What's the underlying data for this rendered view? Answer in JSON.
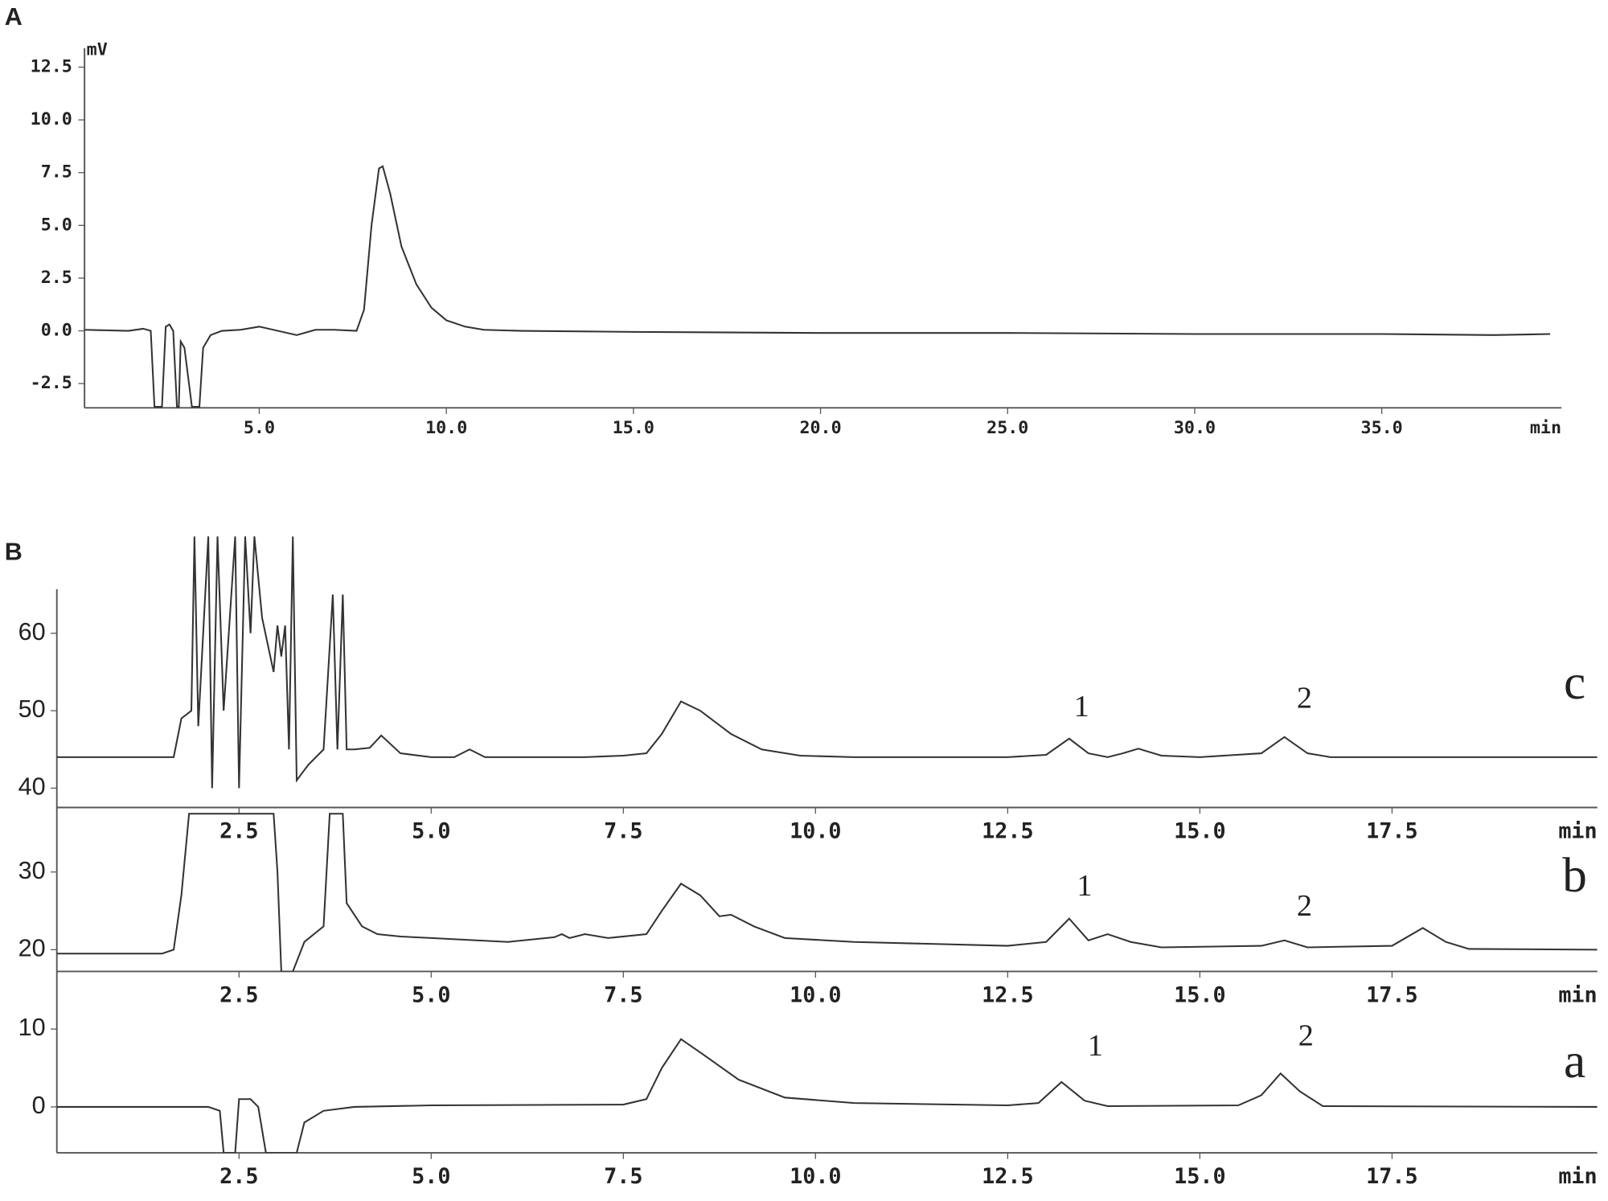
{
  "chart_data": [
    {
      "type": "line",
      "title": "A",
      "xlabel": "min",
      "ylabel": "mV",
      "xlim": [
        0.33,
        39.8
      ],
      "ylim": [
        -3.65,
        13.4
      ],
      "xticks": [
        {
          "value": 5,
          "label": "5.0"
        },
        {
          "value": 10,
          "label": "10.0"
        },
        {
          "value": 15,
          "label": "15.0"
        },
        {
          "value": 20,
          "label": "20.0"
        },
        {
          "value": 25,
          "label": "25.0"
        },
        {
          "value": 30,
          "label": "30.0"
        },
        {
          "value": 35,
          "label": "35.0"
        }
      ],
      "yticks": [
        12.5,
        {
          "value": 10,
          "label": "10.0"
        },
        7.5,
        {
          "value": 5,
          "label": "5.0"
        },
        2.5,
        {
          "value": 0,
          "label": "0.0"
        },
        -2.5
      ],
      "series": [
        {
          "color": "#333333",
          "x": [
            0.33,
            1.5,
            1.9,
            2.1,
            2.2,
            2.4,
            2.5,
            2.6,
            2.7,
            2.75,
            2.8,
            2.85,
            2.9,
            3.0,
            3.2,
            3.4,
            3.5,
            3.7,
            4.0,
            4.5,
            5.0,
            5.5,
            6.0,
            6.5,
            7.0,
            7.6,
            7.8,
            8.0,
            8.2,
            8.3,
            8.5,
            8.8,
            9.2,
            9.6,
            10.0,
            10.5,
            11.0,
            12.0,
            15.0,
            20.0,
            25.0,
            30.0,
            35.0,
            38.0,
            39.5
          ],
          "values": [
            0.05,
            0.0,
            0.1,
            0.0,
            -3.6,
            -3.6,
            0.2,
            0.3,
            0.0,
            -1.8,
            -3.6,
            -3.6,
            -0.5,
            -0.8,
            -3.6,
            -3.6,
            -0.8,
            -0.2,
            0.0,
            0.05,
            0.2,
            0.0,
            -0.2,
            0.05,
            0.05,
            0.0,
            1.0,
            5.0,
            7.7,
            7.8,
            6.5,
            4.0,
            2.2,
            1.1,
            0.5,
            0.2,
            0.05,
            0.0,
            -0.05,
            -0.1,
            -0.1,
            -0.15,
            -0.15,
            -0.2,
            -0.15
          ]
        }
      ]
    },
    {
      "type": "line",
      "title": "B",
      "xlabel": "min",
      "xlim": [
        0.13,
        20.17
      ],
      "ylim": [
        37.5,
        72.7
      ],
      "xticks": [
        2.5,
        {
          "value": 5,
          "label": "5.0"
        },
        7.5,
        {
          "value": 10,
          "label": "10.0"
        },
        12.5,
        {
          "value": 15,
          "label": "15.0"
        },
        17.5
      ],
      "yticks": [
        60,
        50,
        40
      ],
      "series": [
        {
          "name": "c",
          "color": "#333333",
          "x": [
            0.13,
            1.65,
            1.75,
            1.88,
            1.92,
            1.97,
            2.1,
            2.15,
            2.22,
            2.3,
            2.45,
            2.5,
            2.58,
            2.65,
            2.7,
            2.8,
            2.95,
            3.0,
            3.05,
            3.1,
            3.15,
            3.2,
            3.25,
            3.4,
            3.6,
            3.72,
            3.78,
            3.85,
            3.9,
            4.0,
            4.2,
            4.35,
            4.6,
            5.0,
            5.3,
            5.5,
            5.7,
            6.0,
            7.0,
            7.5,
            7.8,
            8.0,
            8.25,
            8.5,
            8.9,
            9.3,
            9.8,
            10.5,
            12.5,
            13.0,
            13.3,
            13.55,
            13.8,
            14.0,
            14.2,
            14.5,
            15.0,
            15.8,
            16.1,
            16.4,
            16.7,
            20.17
          ],
          "values": [
            44,
            44,
            49,
            50,
            72.5,
            48,
            72.5,
            40,
            72.5,
            50,
            72.5,
            40,
            72.5,
            60,
            72.5,
            62,
            55,
            61,
            57,
            61,
            45,
            72.5,
            41,
            43,
            45,
            65,
            45,
            65,
            45,
            45,
            45.2,
            46.8,
            44.5,
            44,
            44,
            45,
            44,
            44,
            44,
            44.2,
            44.5,
            47,
            51.2,
            50,
            47,
            45,
            44.2,
            44,
            44,
            44.3,
            46.4,
            44.5,
            44,
            44.5,
            45.1,
            44.2,
            44,
            44.5,
            46.6,
            44.5,
            44,
            44
          ]
        }
      ],
      "annotations": [
        {
          "text": "1",
          "x": 13.46,
          "y": 50.2
        },
        {
          "text": "2",
          "x": 16.36,
          "y": 51.3
        }
      ]
    },
    {
      "type": "line",
      "xlabel": "min",
      "xlim": [
        0.13,
        20.17
      ],
      "ylim": [
        17.2,
        38.3
      ],
      "xticks": [
        2.5,
        {
          "value": 5,
          "label": "5.0"
        },
        7.5,
        {
          "value": 10,
          "label": "10.0"
        },
        12.5,
        {
          "value": 15,
          "label": "15.0"
        },
        17.5
      ],
      "yticks": [
        30,
        20
      ],
      "series": [
        {
          "name": "b",
          "color": "#333333",
          "x": [
            0.13,
            1.5,
            1.65,
            1.75,
            1.85,
            2.95,
            3.0,
            3.05,
            3.2,
            3.35,
            3.6,
            3.68,
            3.85,
            3.9,
            4.1,
            4.3,
            4.6,
            5.0,
            6.0,
            6.6,
            6.7,
            6.8,
            7.0,
            7.3,
            7.8,
            8.0,
            8.25,
            8.5,
            8.75,
            8.9,
            9.2,
            9.6,
            10.5,
            12.5,
            13.0,
            13.3,
            13.55,
            13.8,
            14.1,
            14.5,
            15.8,
            16.1,
            16.4,
            17.5,
            17.9,
            18.2,
            18.5,
            20.17
          ],
          "values": [
            19.5,
            19.5,
            20,
            27,
            37.5,
            37.5,
            30,
            17.2,
            17.2,
            21,
            23,
            37.5,
            37.5,
            26,
            23,
            22,
            21.7,
            21.5,
            21,
            21.6,
            22,
            21.5,
            22,
            21.5,
            22,
            25,
            28.5,
            27,
            24.3,
            24.5,
            23,
            21.5,
            21,
            20.5,
            21,
            24,
            21.2,
            22,
            21,
            20.3,
            20.5,
            21.2,
            20.3,
            20.5,
            22.8,
            21,
            20.1,
            20
          ]
        }
      ],
      "annotations": [
        {
          "text": "1",
          "x": 13.5,
          "y": 27.9
        },
        {
          "text": "2",
          "x": 16.36,
          "y": 25.3
        }
      ]
    },
    {
      "type": "line",
      "xlabel": "min",
      "xlim": [
        0.13,
        20.17
      ],
      "ylim": [
        -5.9,
        17.4
      ],
      "xticks": [
        2.5,
        {
          "value": 5,
          "label": "5.0"
        },
        7.5,
        {
          "value": 10,
          "label": "10.0"
        },
        12.5,
        {
          "value": 15,
          "label": "15.0"
        },
        17.5
      ],
      "yticks": [
        10,
        0
      ],
      "series": [
        {
          "name": "a",
          "color": "#333333",
          "x": [
            0.13,
            2.1,
            2.25,
            2.3,
            2.45,
            2.5,
            2.65,
            2.75,
            2.85,
            3.25,
            3.35,
            3.6,
            4.0,
            5.0,
            7.5,
            7.8,
            8.0,
            8.25,
            8.5,
            9.0,
            9.6,
            10.5,
            12.5,
            12.9,
            13.2,
            13.5,
            13.8,
            15.5,
            15.8,
            16.05,
            16.3,
            16.6,
            20.17
          ],
          "values": [
            0,
            0,
            -0.5,
            -5.9,
            -5.9,
            1,
            1,
            0,
            -5.9,
            -5.9,
            -2,
            -0.5,
            0,
            0.2,
            0.3,
            1,
            5,
            8.7,
            7,
            3.5,
            1.2,
            0.5,
            0.2,
            0.5,
            3.2,
            0.8,
            0.1,
            0.2,
            1.5,
            4.3,
            2,
            0.1,
            0
          ]
        }
      ],
      "annotations": [
        {
          "text": "1",
          "x": 13.64,
          "y": 7.5
        },
        {
          "text": "2",
          "x": 16.38,
          "y": 8.8
        }
      ]
    }
  ]
}
